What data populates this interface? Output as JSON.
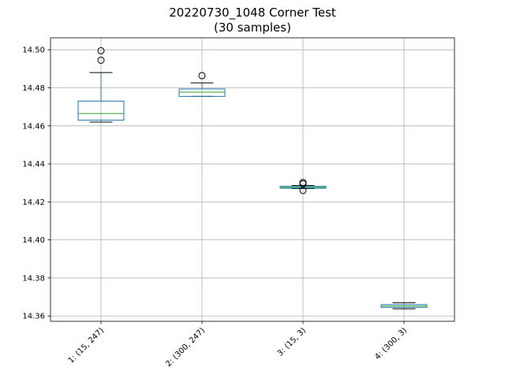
{
  "title_line1": "20220730_1048 Corner Test",
  "title_line2": "(30 samples)",
  "chart_data": {
    "type": "box",
    "title": "20220730_1048 Corner Test\n(30 samples)",
    "xlabel": "",
    "ylabel": "",
    "categories": [
      "1: (15, 247)",
      "2: (300, 247)",
      "3: (15, 3)",
      "4: (300, 3)"
    ],
    "boxes": [
      {
        "label": "1: (15, 247)",
        "whislo": 14.462,
        "q1": 14.463,
        "med": 14.4665,
        "q3": 14.473,
        "whishi": 14.488,
        "fliers": [
          14.4995,
          14.4945
        ]
      },
      {
        "label": "2: (300, 247)",
        "whislo": 14.4755,
        "q1": 14.4755,
        "med": 14.4777,
        "q3": 14.4794,
        "whishi": 14.4826,
        "fliers": [
          14.4864
        ]
      },
      {
        "label": "3: (15, 3)",
        "whislo": 14.427,
        "q1": 14.4272,
        "med": 14.4276,
        "q3": 14.4282,
        "whishi": 14.4286,
        "fliers": [
          14.4302,
          14.4295,
          14.426
        ]
      },
      {
        "label": "4: (300, 3)",
        "whislo": 14.3638,
        "q1": 14.3645,
        "med": 14.3652,
        "q3": 14.366,
        "whishi": 14.367,
        "fliers": []
      }
    ],
    "yticks": [
      14.36,
      14.38,
      14.4,
      14.42,
      14.44,
      14.46,
      14.48,
      14.5
    ],
    "ytick_labels": [
      "14.36",
      "14.38",
      "14.40",
      "14.42",
      "14.44",
      "14.46",
      "14.48",
      "14.50"
    ],
    "ylim": [
      14.3572,
      14.5063
    ],
    "grid": true,
    "xtick_rotation_deg": 45,
    "colors": {
      "box": "#1f77b4",
      "median": "#2ca02c",
      "whisker": "#000000",
      "grid": "#b0b0b0"
    }
  }
}
